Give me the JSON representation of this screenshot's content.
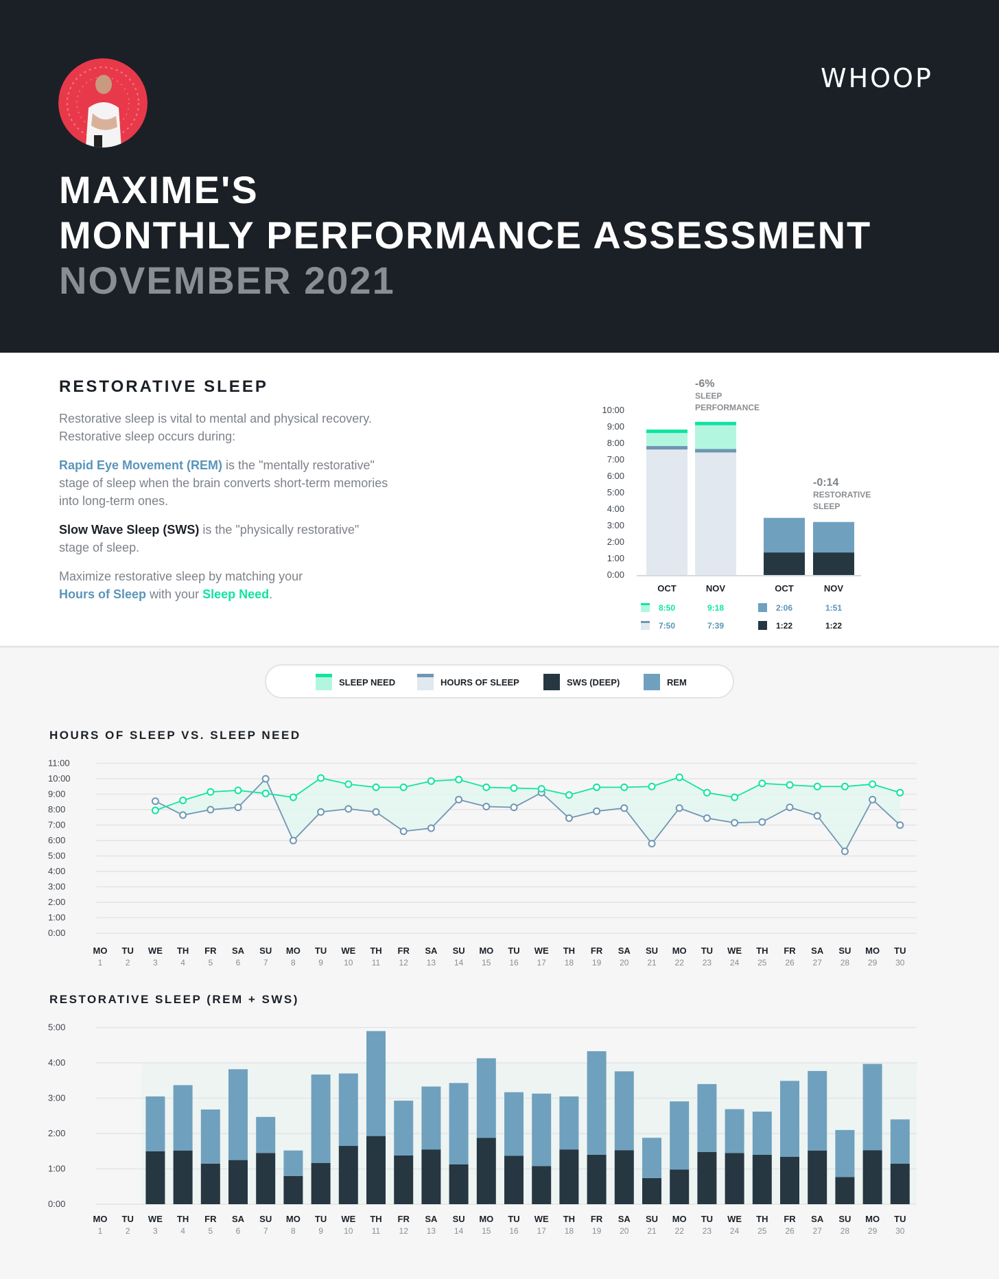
{
  "header": {
    "brand": "WHOOP",
    "title_line1": "MAXIME'S",
    "title_line2": "MONTHLY PERFORMANCE ASSESSMENT",
    "title_line3": "NOVEMBER 2021"
  },
  "restorative": {
    "title": "RESTORATIVE SLEEP",
    "p1a": "Restorative sleep is vital to mental and physical recovery.",
    "p1b": "Restorative sleep occurs during:",
    "rem_term": "Rapid Eye Movement (REM)",
    "p2a": " is the \"mentally restorative\"",
    "p2b": "stage of sleep when the brain converts short-term memories",
    "p2c": "into long-term ones.",
    "sws_term": "Slow Wave Sleep (SWS)",
    "p3a": " is the \"physically restorative\"",
    "p3b": "stage of sleep.",
    "p4a": "Maximize restorative sleep by matching your",
    "hours_term": "Hours of Sleep",
    "p4mid": " with your ",
    "need_term": "Sleep Need",
    "p4end": "."
  },
  "colors": {
    "sleep_need": "#10e4a1",
    "sleep_need_fill": "#b3f6df",
    "hours": "#6f96b3",
    "hours_fill": "#e1e8ef",
    "sws": "#263742",
    "rem": "#6fa1be",
    "header_bg": "#1b2027"
  },
  "legend": [
    {
      "label": "SLEEP NEED",
      "icon": "sleep-need-swatch"
    },
    {
      "label": "HOURS OF SLEEP",
      "icon": "hours-swatch"
    },
    {
      "label": "SWS (DEEP)",
      "icon": "sws-swatch"
    },
    {
      "label": "REM",
      "icon": "rem-swatch"
    }
  ],
  "chart_data": [
    {
      "type": "bar",
      "id": "summary-sleep",
      "categories": [
        "OCT",
        "NOV"
      ],
      "series": [
        {
          "name": "SLEEP NEED",
          "values": [
            8.83,
            9.3
          ],
          "labels": [
            "8:50",
            "9:18"
          ]
        },
        {
          "name": "HOURS OF SLEEP",
          "values": [
            7.83,
            7.65
          ],
          "labels": [
            "7:50",
            "7:39"
          ]
        }
      ],
      "annotation_value": "-6%",
      "annotation_label_1": "SLEEP",
      "annotation_label_2": "PERFORMANCE",
      "yticks": [
        "10:00",
        "9:00",
        "8:00",
        "7:00",
        "6:00",
        "5:00",
        "4:00",
        "3:00",
        "2:00",
        "1:00",
        "0:00"
      ],
      "ylim": [
        0,
        10
      ]
    },
    {
      "type": "bar",
      "id": "summary-restorative",
      "categories": [
        "OCT",
        "NOV"
      ],
      "series": [
        {
          "name": "REM",
          "values": [
            2.1,
            1.85
          ],
          "labels": [
            "2:06",
            "1:51"
          ]
        },
        {
          "name": "SWS (DEEP)",
          "values": [
            1.37,
            1.37
          ],
          "labels": [
            "1:22",
            "1:22"
          ]
        }
      ],
      "annotation_value": "-0:14",
      "annotation_label_1": "RESTORATIVE",
      "annotation_label_2": "SLEEP",
      "ylim": [
        0,
        10
      ]
    },
    {
      "type": "line",
      "id": "hours-vs-need",
      "title": "HOURS OF SLEEP VS. SLEEP NEED",
      "days": [
        "MO",
        "TU",
        "WE",
        "TH",
        "FR",
        "SA",
        "SU",
        "MO",
        "TU",
        "WE",
        "TH",
        "FR",
        "SA",
        "SU",
        "MO",
        "TU",
        "WE",
        "TH",
        "FR",
        "SA",
        "SU",
        "MO",
        "TU",
        "WE",
        "TH",
        "FR",
        "SA",
        "SU",
        "MO",
        "TU"
      ],
      "dates": [
        "1",
        "2",
        "3",
        "4",
        "5",
        "6",
        "7",
        "8",
        "9",
        "10",
        "11",
        "12",
        "13",
        "14",
        "15",
        "16",
        "17",
        "18",
        "19",
        "20",
        "21",
        "22",
        "23",
        "24",
        "25",
        "26",
        "27",
        "28",
        "29",
        "30"
      ],
      "series": [
        {
          "name": "SLEEP NEED",
          "values": [
            null,
            null,
            7.95,
            8.6,
            9.15,
            9.25,
            9.05,
            8.8,
            10.05,
            9.65,
            9.45,
            9.45,
            9.85,
            9.95,
            9.45,
            9.4,
            9.35,
            8.95,
            9.45,
            9.45,
            9.5,
            10.1,
            9.1,
            8.8,
            9.7,
            9.6,
            9.5,
            9.5,
            9.65,
            9.1
          ]
        },
        {
          "name": "HOURS OF SLEEP",
          "values": [
            null,
            null,
            8.55,
            7.65,
            8.0,
            8.15,
            10.0,
            6.0,
            7.85,
            8.05,
            7.85,
            6.6,
            6.8,
            8.65,
            8.2,
            8.15,
            9.1,
            7.45,
            7.9,
            8.1,
            5.8,
            8.1,
            7.45,
            7.15,
            7.2,
            8.15,
            7.6,
            5.3,
            8.65,
            7.0
          ]
        }
      ],
      "yticks": [
        "11:00",
        "10:00",
        "9:00",
        "8:00",
        "7:00",
        "6:00",
        "5:00",
        "4:00",
        "3:00",
        "2:00",
        "1:00",
        "0:00"
      ],
      "ylim": [
        0,
        11
      ]
    },
    {
      "type": "bar",
      "id": "restorative-daily",
      "title": "RESTORATIVE SLEEP (REM + SWS)",
      "days": [
        "MO",
        "TU",
        "WE",
        "TH",
        "FR",
        "SA",
        "SU",
        "MO",
        "TU",
        "WE",
        "TH",
        "FR",
        "SA",
        "SU",
        "MO",
        "TU",
        "WE",
        "TH",
        "FR",
        "SA",
        "SU",
        "MO",
        "TU",
        "WE",
        "TH",
        "FR",
        "SA",
        "SU",
        "MO",
        "TU"
      ],
      "dates": [
        "1",
        "2",
        "3",
        "4",
        "5",
        "6",
        "7",
        "8",
        "9",
        "10",
        "11",
        "12",
        "13",
        "14",
        "15",
        "16",
        "17",
        "18",
        "19",
        "20",
        "21",
        "22",
        "23",
        "24",
        "25",
        "26",
        "27",
        "28",
        "29",
        "30"
      ],
      "series": [
        {
          "name": "SWS (DEEP)",
          "values": [
            0,
            0,
            1.5,
            1.52,
            1.15,
            1.25,
            1.45,
            0.8,
            1.17,
            1.65,
            1.93,
            1.38,
            1.55,
            1.13,
            1.88,
            1.37,
            1.08,
            1.55,
            1.4,
            1.53,
            0.74,
            0.98,
            1.48,
            1.45,
            1.4,
            1.34,
            1.52,
            0.77,
            1.53,
            1.15
          ]
        },
        {
          "name": "REM",
          "values": [
            0,
            0,
            1.55,
            1.85,
            1.53,
            2.57,
            1.02,
            0.72,
            2.5,
            2.05,
            2.97,
            1.55,
            1.78,
            2.3,
            2.25,
            1.8,
            2.05,
            1.5,
            2.93,
            2.23,
            1.14,
            1.93,
            1.92,
            1.24,
            1.22,
            2.15,
            2.25,
            1.33,
            2.44,
            1.25
          ]
        }
      ],
      "yticks": [
        "5:00",
        "4:00",
        "3:00",
        "2:00",
        "1:00",
        "0:00"
      ],
      "ylim": [
        0,
        5
      ]
    }
  ]
}
